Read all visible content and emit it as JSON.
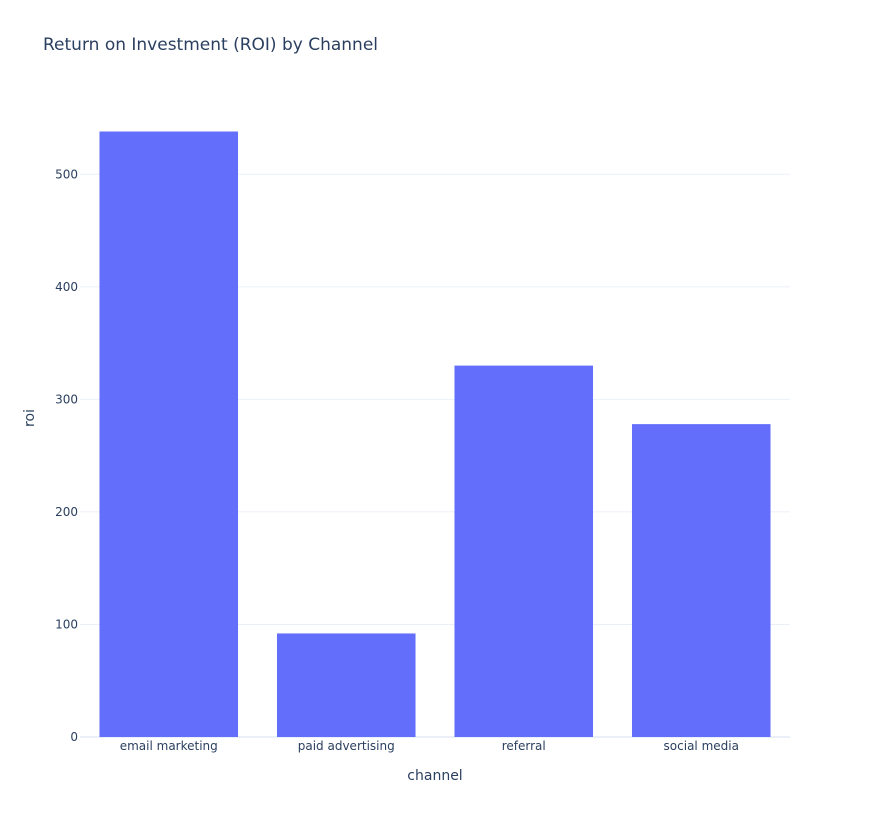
{
  "chart_data": {
    "type": "bar",
    "title": "Return on Investment (ROI) by Channel",
    "xlabel": "channel",
    "ylabel": "roi",
    "categories": [
      "email marketing",
      "paid advertising",
      "referral",
      "social media"
    ],
    "values": [
      538,
      92,
      330,
      278
    ],
    "ylim": [
      0,
      566
    ],
    "yticks": [
      0,
      100,
      200,
      300,
      400,
      500
    ],
    "bar_color": "#636efa",
    "grid": true,
    "legend": "none"
  }
}
